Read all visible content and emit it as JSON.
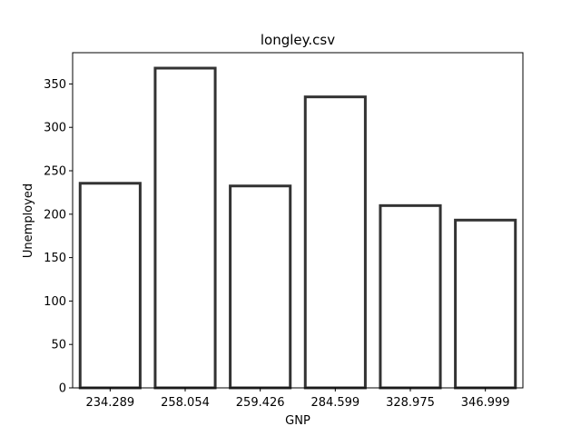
{
  "chart_data": {
    "type": "bar",
    "title": "longley.csv",
    "xlabel": "GNP",
    "ylabel": "Unemployed",
    "categories": [
      "234.289",
      "258.054",
      "259.426",
      "284.599",
      "328.975",
      "346.999"
    ],
    "values": [
      235.6,
      368.2,
      232.5,
      335.1,
      209.9,
      193.2
    ],
    "ylim": [
      0,
      386
    ],
    "yticks": [
      0,
      50,
      100,
      150,
      200,
      250,
      300,
      350
    ],
    "grid": false,
    "legend": "none",
    "colors": {
      "bar_fill": "#ffffff",
      "bar_edge": "#333333",
      "axis": "#000000"
    }
  }
}
